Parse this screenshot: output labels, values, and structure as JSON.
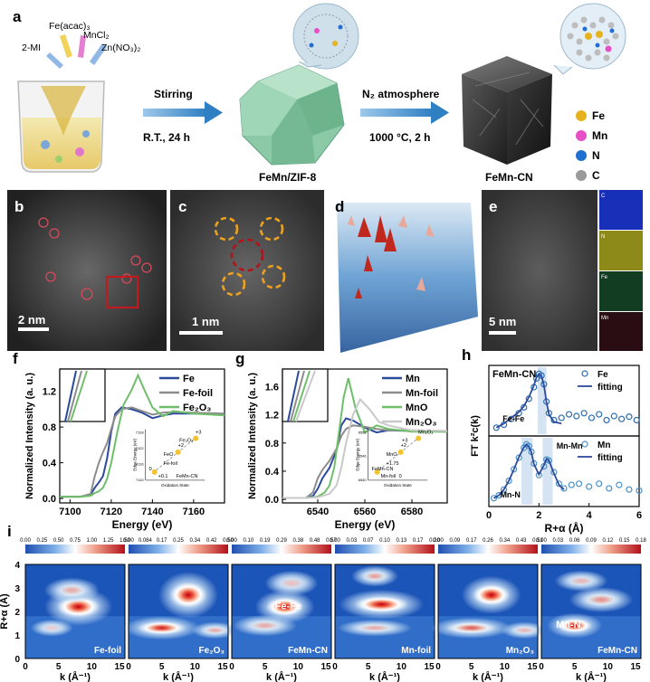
{
  "panels": {
    "a": {
      "letter": "a",
      "reagents": [
        "2-MI",
        "Fe(acac)₃",
        "MnCl₂",
        "Zn(NO₃)₂"
      ],
      "step1_top": "Stirring",
      "step1_bottom": "R.T., 24 h",
      "intermediate": "FeMn/ZIF-8",
      "step2_top": "N₂ atmosphere",
      "step2_bottom": "1000 °C, 2 h",
      "product": "FeMn-CN",
      "legend": [
        {
          "label": "Fe",
          "color": "#e6b21e"
        },
        {
          "label": "Mn",
          "color": "#e84fc6"
        },
        {
          "label": "N",
          "color": "#1f6fd1"
        },
        {
          "label": "C",
          "color": "#9a9a9a"
        }
      ]
    },
    "b": {
      "letter": "b",
      "scale": "2 nm"
    },
    "c": {
      "letter": "c",
      "scale": "1 nm"
    },
    "d": {
      "letter": "d"
    },
    "e": {
      "letter": "e",
      "scale": "5 nm",
      "maps": [
        "C",
        "N",
        "Fe",
        "Mn"
      ]
    }
  },
  "chart_data": [
    {
      "id": "f",
      "type": "line",
      "letter": "f",
      "xlabel": "Energy (eV)",
      "ylabel": "Normalized Intensity (a. u.)",
      "xlim": [
        7095,
        7175
      ],
      "ylim": [
        -0.05,
        1.45
      ],
      "xticks": [
        7100,
        7120,
        7140,
        7160
      ],
      "yticks": [
        0.0,
        0.4,
        0.8,
        1.2
      ],
      "series": [
        {
          "name": "Fe",
          "color": "#2b4a9c",
          "x": [
            7095,
            7105,
            7110,
            7112,
            7114,
            7116,
            7118,
            7120,
            7122,
            7125,
            7130,
            7135,
            7140,
            7145,
            7150,
            7160,
            7175
          ],
          "y": [
            0.02,
            0.02,
            0.04,
            0.12,
            0.18,
            0.25,
            0.45,
            0.75,
            0.95,
            1.02,
            1.0,
            0.96,
            0.9,
            0.93,
            0.95,
            0.95,
            0.94
          ]
        },
        {
          "name": "Fe-foil",
          "color": "#8c8c8c",
          "x": [
            7095,
            7105,
            7110,
            7112,
            7114,
            7116,
            7118,
            7120,
            7122,
            7125,
            7130,
            7135,
            7140,
            7145,
            7150,
            7160,
            7175
          ],
          "y": [
            0.02,
            0.02,
            0.05,
            0.25,
            0.4,
            0.52,
            0.62,
            0.78,
            0.92,
            1.0,
            1.02,
            0.98,
            0.94,
            0.96,
            0.97,
            0.96,
            0.95
          ]
        },
        {
          "name": "Fe₂O₃",
          "color": "#6fbe6a",
          "x": [
            7095,
            7105,
            7110,
            7112,
            7114,
            7116,
            7118,
            7120,
            7123,
            7126,
            7130,
            7133,
            7136,
            7140,
            7145,
            7150,
            7160,
            7175
          ],
          "y": [
            0.02,
            0.02,
            0.03,
            0.06,
            0.08,
            0.12,
            0.22,
            0.4,
            0.75,
            1.05,
            1.22,
            1.38,
            1.22,
            1.02,
            0.92,
            0.98,
            0.95,
            0.93
          ]
        }
      ],
      "inset": {
        "xlabel": "Oxidation State",
        "ylabel": "Edge Energy (eV)",
        "yticks": [
          "7128",
          "7122",
          "7116",
          "7110"
        ],
        "labels": [
          "+3",
          "Fe₂O₃",
          "+2",
          "FeO",
          "Fe-foil",
          "0",
          "+0.1",
          "FeMn-CN"
        ]
      }
    },
    {
      "id": "g",
      "type": "line",
      "letter": "g",
      "xlabel": "Energy (eV)",
      "ylabel": "Normalized Intensity (a. u.)",
      "xlim": [
        6525,
        6595
      ],
      "ylim": [
        -0.05,
        1.85
      ],
      "xticks": [
        6540,
        6560,
        6580
      ],
      "yticks": [
        0.0,
        0.4,
        0.8,
        1.2,
        1.6
      ],
      "series": [
        {
          "name": "Mn",
          "color": "#2b4a9c",
          "x": [
            6525,
            6535,
            6538,
            6540,
            6542,
            6545,
            6548,
            6550,
            6552,
            6555,
            6560,
            6565,
            6570,
            6580,
            6595
          ],
          "y": [
            0.02,
            0.02,
            0.05,
            0.15,
            0.3,
            0.45,
            0.7,
            1.05,
            1.15,
            1.12,
            1.02,
            0.95,
            0.98,
            0.97,
            0.96
          ]
        },
        {
          "name": "Mn-foil",
          "color": "#8c8c8c",
          "x": [
            6525,
            6535,
            6538,
            6540,
            6542,
            6545,
            6548,
            6550,
            6552,
            6555,
            6560,
            6565,
            6570,
            6580,
            6595
          ],
          "y": [
            0.02,
            0.02,
            0.1,
            0.3,
            0.42,
            0.55,
            0.72,
            0.9,
            1.0,
            1.05,
            1.03,
            1.0,
            0.98,
            0.98,
            0.97
          ]
        },
        {
          "name": "MnO",
          "color": "#6fbe6a",
          "x": [
            6525,
            6535,
            6540,
            6543,
            6545,
            6547,
            6549,
            6551,
            6553,
            6556,
            6560,
            6565,
            6570,
            6580,
            6595
          ],
          "y": [
            0.02,
            0.02,
            0.04,
            0.1,
            0.2,
            0.45,
            0.95,
            1.45,
            1.72,
            1.3,
            0.95,
            1.05,
            1.0,
            0.96,
            0.96
          ]
        },
        {
          "name": "Mn₂O₃",
          "color": "#c9c9c9",
          "x": [
            6525,
            6535,
            6540,
            6545,
            6548,
            6550,
            6552,
            6555,
            6558,
            6562,
            6566,
            6570,
            6580,
            6595
          ],
          "y": [
            0.02,
            0.02,
            0.03,
            0.08,
            0.2,
            0.45,
            0.8,
            1.2,
            1.42,
            1.28,
            1.1,
            1.05,
            0.98,
            0.97
          ]
        }
      ],
      "inset": {
        "xlabel": "Oxidation State",
        "ylabel": "Edge Energy (eV)",
        "yticks": [
          "6552",
          "6546",
          "6540"
        ],
        "labels": [
          "Mn₂O₃",
          "+3",
          "+2",
          "MnO",
          "+1.75",
          "FeMn-CN",
          "Mn-foil",
          "0"
        ]
      }
    },
    {
      "id": "h",
      "type": "scatter",
      "letter": "h",
      "xlabel": "R+α (Å)",
      "ylabel": "FT k²c(k)",
      "xlim": [
        0,
        6
      ],
      "xticks": [
        0,
        2,
        4,
        6
      ],
      "top": {
        "title": "FeMn-CN",
        "annotation": "Fe-Fe",
        "series": [
          {
            "name": "Fe",
            "kind": "markers",
            "color": "#2b6cb0",
            "x": [
              0.3,
              0.6,
              0.9,
              1.2,
              1.4,
              1.6,
              1.8,
              1.9,
              2.0,
              2.1,
              2.2,
              2.3,
              2.4,
              2.6,
              2.9,
              3.2,
              3.5,
              3.8,
              4.1,
              4.4,
              4.7,
              5.0,
              5.3,
              5.6,
              5.9
            ],
            "y": [
              0.05,
              0.1,
              0.2,
              0.3,
              0.4,
              0.55,
              0.75,
              0.9,
              0.98,
              0.95,
              0.8,
              0.5,
              0.3,
              0.18,
              0.22,
              0.28,
              0.25,
              0.3,
              0.22,
              0.28,
              0.18,
              0.25,
              0.2,
              0.24,
              0.18
            ]
          },
          {
            "name": "fitting",
            "kind": "line",
            "color": "#2b4a9c",
            "x": [
              0.3,
              0.6,
              0.9,
              1.2,
              1.4,
              1.6,
              1.8,
              1.9,
              2.0,
              2.1,
              2.2,
              2.3,
              2.4,
              2.6,
              2.9
            ],
            "y": [
              0.05,
              0.12,
              0.22,
              0.32,
              0.42,
              0.58,
              0.78,
              0.92,
              0.98,
              0.94,
              0.78,
              0.5,
              0.28,
              0.15,
              0.12
            ]
          }
        ]
      },
      "bottom": {
        "annotations": [
          "Mn-N",
          "Mn-Mn"
        ],
        "series": [
          {
            "name": "Mn",
            "kind": "markers",
            "color": "#4a90c8",
            "x": [
              0.2,
              0.4,
              0.6,
              0.8,
              1.0,
              1.2,
              1.4,
              1.5,
              1.6,
              1.7,
              1.8,
              2.0,
              2.2,
              2.3,
              2.4,
              2.6,
              2.8,
              3.0,
              3.3,
              3.6,
              4.0,
              4.4,
              4.8,
              5.2,
              5.6,
              6.0
            ],
            "y": [
              0.05,
              0.1,
              0.2,
              0.35,
              0.55,
              0.75,
              0.92,
              0.98,
              0.95,
              0.85,
              0.65,
              0.45,
              0.6,
              0.72,
              0.7,
              0.5,
              0.3,
              0.22,
              0.28,
              0.3,
              0.25,
              0.3,
              0.22,
              0.28,
              0.2,
              0.18
            ]
          },
          {
            "name": "fitting",
            "kind": "line",
            "color": "#2b4a9c",
            "x": [
              0.2,
              0.4,
              0.6,
              0.8,
              1.0,
              1.2,
              1.4,
              1.5,
              1.6,
              1.7,
              1.8,
              2.0,
              2.2,
              2.3,
              2.4,
              2.6,
              2.8,
              3.0
            ],
            "y": [
              0.05,
              0.1,
              0.2,
              0.35,
              0.55,
              0.76,
              0.93,
              0.98,
              0.94,
              0.84,
              0.64,
              0.46,
              0.62,
              0.73,
              0.7,
              0.48,
              0.28,
              0.2
            ]
          }
        ]
      }
    },
    {
      "id": "i",
      "type": "heatmap",
      "letter": "i",
      "ylabel": "R+α (Å)",
      "xlabel": "k (Å⁻¹)",
      "yticks": [
        0,
        1,
        2,
        3,
        4
      ],
      "xticks": [
        0,
        5,
        10,
        15
      ],
      "maps": [
        {
          "label": "Fe-foil",
          "colorbar": [
            "0.00",
            "0.25",
            "0.50",
            "0.75",
            "1.00",
            "1.25",
            "1.50"
          ],
          "spots": [
            [
              8,
              2.2,
              3.2,
              0.45,
              1.0
            ],
            [
              7,
              2.9,
              2.6,
              0.3,
              0.35
            ],
            [
              4,
              1.3,
              2.0,
              0.2,
              0.2
            ]
          ],
          "inner": ""
        },
        {
          "label": "Fe₂O₃",
          "colorbar": [
            "0.00",
            "0.084",
            "0.17",
            "0.25",
            "0.34",
            "0.42",
            "0.50"
          ],
          "spots": [
            [
              9,
              2.7,
              2.8,
              0.55,
              1.0
            ],
            [
              5,
              1.3,
              3.6,
              0.28,
              0.9
            ],
            [
              13,
              1.2,
              2.2,
              0.2,
              0.35
            ]
          ],
          "inner": ""
        },
        {
          "label": "FeMn-CN",
          "colorbar": [
            "0.00",
            "0.10",
            "0.19",
            "0.29",
            "0.38",
            "0.48",
            "0.57"
          ],
          "spots": [
            [
              8,
              2.2,
              2.8,
              0.4,
              1.0
            ],
            [
              5,
              1.4,
              3.0,
              0.25,
              0.35
            ],
            [
              9,
              3.2,
              2.5,
              0.3,
              0.25
            ]
          ],
          "inner": "Fe-Fe"
        },
        {
          "label": "Mn-foil",
          "colorbar": [
            "0.00",
            "0.03",
            "0.07",
            "0.10",
            "0.13",
            "0.17",
            "0.20"
          ],
          "spots": [
            [
              7,
              2.3,
              4.0,
              0.35,
              1.0
            ],
            [
              6,
              3.5,
              2.2,
              0.25,
              0.4
            ],
            [
              6,
              1.3,
              3.5,
              0.2,
              0.35
            ]
          ],
          "inner": ""
        },
        {
          "label": "Mn₂O₃",
          "colorbar": [
            "0.00",
            "0.09",
            "0.17",
            "0.26",
            "0.34",
            "0.43",
            "0.51"
          ],
          "spots": [
            [
              8,
              2.7,
              2.8,
              0.45,
              1.0
            ],
            [
              5,
              1.3,
              3.8,
              0.25,
              0.65
            ],
            [
              13,
              1.2,
              2.2,
              0.2,
              0.3
            ]
          ],
          "inner": ""
        },
        {
          "label": "FeMn-CN",
          "colorbar": [
            "0.00",
            "0.03",
            "0.06",
            "0.09",
            "0.12",
            "0.15",
            "0.18"
          ],
          "spots": [
            [
              5,
              1.4,
              2.6,
              0.3,
              1.0
            ],
            [
              9,
              2.5,
              3.0,
              0.3,
              0.45
            ],
            [
              6,
              3.3,
              2.5,
              0.25,
              0.3
            ]
          ],
          "inner": "Mn-N"
        }
      ]
    }
  ]
}
